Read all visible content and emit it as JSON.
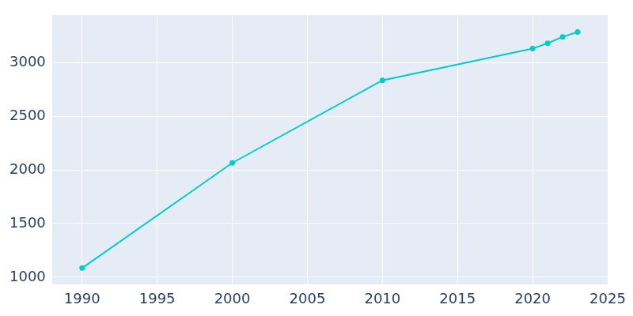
{
  "chart_data": {
    "type": "line",
    "x": [
      1990,
      2000,
      2010,
      2020,
      2021,
      2022,
      2023
    ],
    "values": [
      1085,
      2065,
      2835,
      3130,
      3180,
      3240,
      3285
    ],
    "color": "#00cccc",
    "marker": "circle",
    "xlim": [
      1988,
      2025
    ],
    "xticks": [
      1990,
      1995,
      2000,
      2005,
      2010,
      2015,
      2020,
      2025
    ],
    "ylim": [
      930,
      3445
    ],
    "yticks": [
      1000,
      1500,
      2000,
      2500,
      3000
    ],
    "grid": true
  }
}
